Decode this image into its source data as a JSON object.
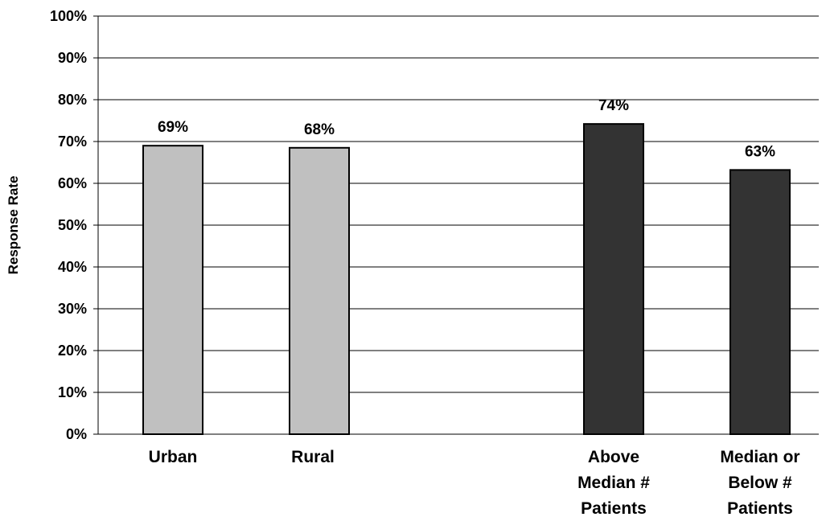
{
  "chart_data": {
    "type": "bar",
    "ylabel": "Response Rate",
    "ylim": [
      0,
      100
    ],
    "y_ticks": [
      "0%",
      "10%",
      "20%",
      "30%",
      "40%",
      "50%",
      "60%",
      "70%",
      "80%",
      "90%",
      "100%"
    ],
    "grid": true,
    "categories": [
      {
        "label_lines": [
          "Urban"
        ],
        "value": 69,
        "value_label": "69%",
        "color": "#c0c0c0"
      },
      {
        "label_lines": [
          "Rural"
        ],
        "value": 68.5,
        "value_label": "68%",
        "color": "#c0c0c0"
      },
      {
        "label_lines": [
          "Above",
          "Median #",
          "Patients"
        ],
        "value": 74.2,
        "value_label": "74%",
        "color": "#333333"
      },
      {
        "label_lines": [
          "Median or",
          "Below #",
          "Patients"
        ],
        "value": 63.2,
        "value_label": "63%",
        "color": "#333333"
      }
    ]
  }
}
